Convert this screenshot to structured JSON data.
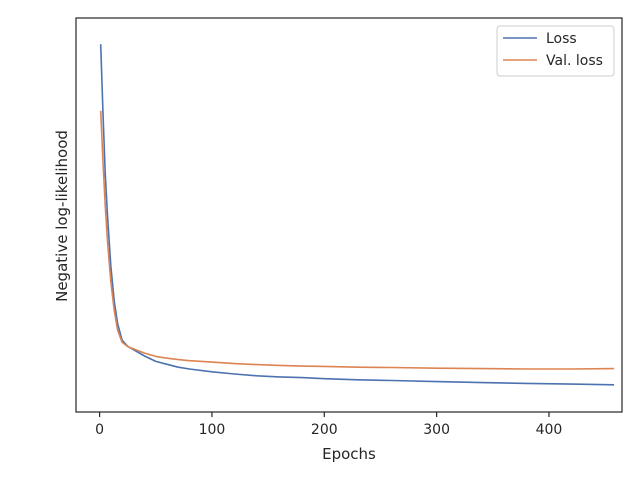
{
  "chart_data": {
    "type": "line",
    "title": "",
    "xlabel": "Epochs",
    "ylabel": "Negative log-likelihood",
    "xlim": [
      -21,
      465
    ],
    "ylim": [
      0,
      1
    ],
    "xticks": [
      0,
      100,
      200,
      300,
      400
    ],
    "xtick_labels": [
      "0",
      "100",
      "200",
      "300",
      "400"
    ],
    "yticks_shown": false,
    "grid": false,
    "legend_position": "top-right",
    "series": [
      {
        "name": "Loss",
        "color": "#4c72b0",
        "x": [
          1,
          3,
          5,
          7,
          10,
          13,
          16,
          20,
          25,
          30,
          40,
          50,
          60,
          70,
          80,
          100,
          120,
          140,
          160,
          180,
          200,
          230,
          260,
          300,
          340,
          380,
          420,
          458
        ],
        "y": [
          0.966,
          0.774,
          0.608,
          0.49,
          0.351,
          0.253,
          0.19,
          0.144,
          0.127,
          0.118,
          0.1,
          0.085,
          0.077,
          0.069,
          0.064,
          0.056,
          0.05,
          0.045,
          0.042,
          0.04,
          0.037,
          0.034,
          0.032,
          0.029,
          0.026,
          0.024,
          0.022,
          0.02
        ]
      },
      {
        "name": "Val. loss",
        "color": "#dd8452",
        "x": [
          1,
          3,
          5,
          7,
          10,
          13,
          16,
          20,
          25,
          30,
          40,
          50,
          60,
          70,
          80,
          100,
          120,
          140,
          160,
          180,
          200,
          230,
          260,
          300,
          340,
          380,
          420,
          458
        ],
        "y": [
          0.781,
          0.638,
          0.519,
          0.418,
          0.307,
          0.227,
          0.172,
          0.138,
          0.126,
          0.12,
          0.108,
          0.099,
          0.094,
          0.09,
          0.087,
          0.083,
          0.079,
          0.076,
          0.074,
          0.072,
          0.071,
          0.069,
          0.068,
          0.066,
          0.065,
          0.064,
          0.064,
          0.065
        ]
      }
    ]
  }
}
